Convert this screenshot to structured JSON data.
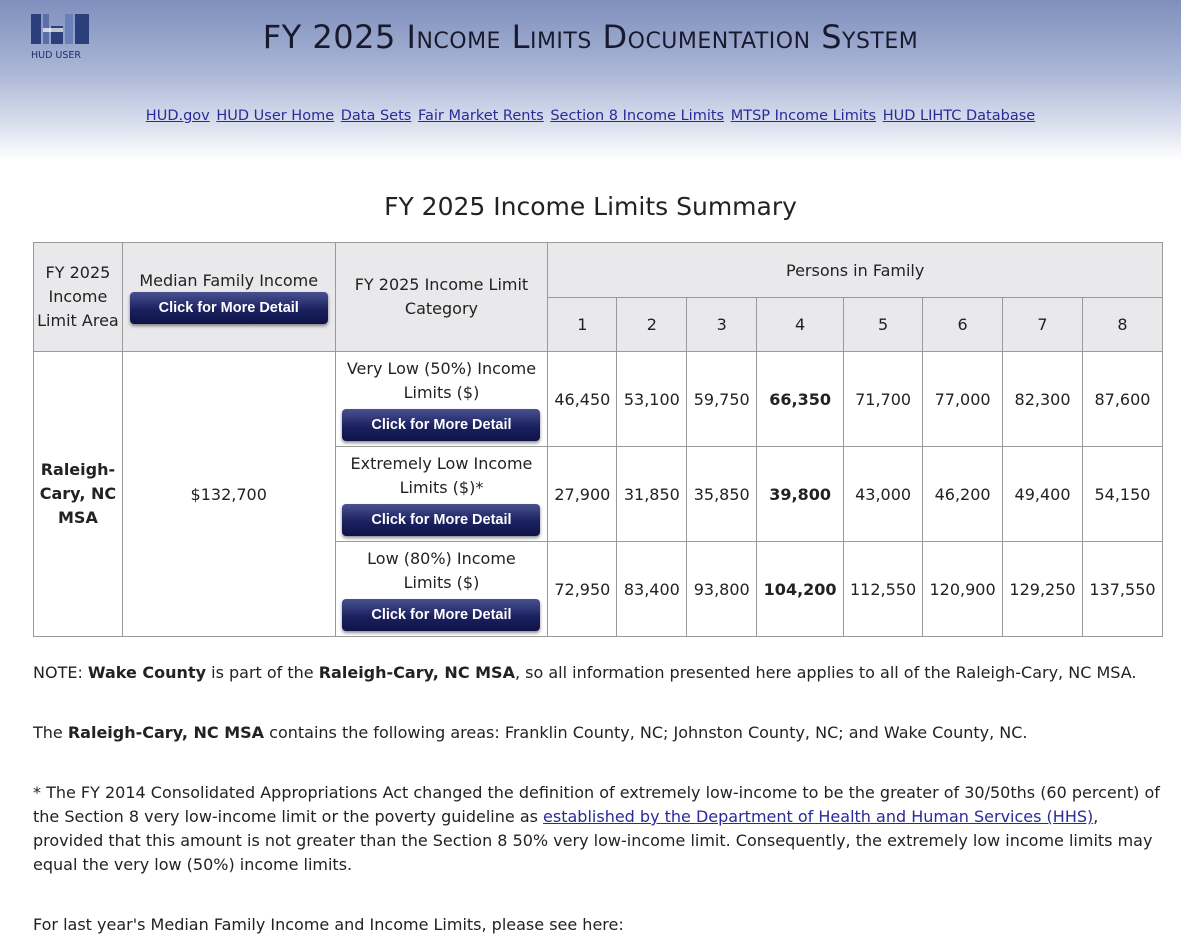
{
  "header": {
    "logo_text": "HUD USER",
    "title": "FY 2025 Income Limits Documentation System",
    "nav": [
      "HUD.gov",
      "HUD User Home",
      "Data Sets",
      "Fair Market Rents",
      "Section 8 Income Limits",
      "MTSP Income Limits",
      "HUD LIHTC Database"
    ]
  },
  "page_title": "FY 2025 Income Limits Summary",
  "table": {
    "col_area": "FY 2025 Income Limit Area",
    "col_mfi": "Median Family Income",
    "col_category": "FY 2025 Income Limit Category",
    "col_persons": "Persons in Family",
    "persons": [
      "1",
      "2",
      "3",
      "4",
      "5",
      "6",
      "7",
      "8"
    ],
    "detail_button": "Click for More Detail",
    "area": "Raleigh-Cary, NC MSA",
    "mfi": "$132,700",
    "rows": [
      {
        "category": "Very Low (50%) Income Limits ($)",
        "values": [
          "46,450",
          "53,100",
          "59,750",
          "66,350",
          "71,700",
          "77,000",
          "82,300",
          "87,600"
        ]
      },
      {
        "category": "Extremely Low Income Limits ($)*",
        "values": [
          "27,900",
          "31,850",
          "35,850",
          "39,800",
          "43,000",
          "46,200",
          "49,400",
          "54,150"
        ]
      },
      {
        "category": "Low (80%) Income Limits ($)",
        "values": [
          "72,950",
          "83,400",
          "93,800",
          "104,200",
          "112,550",
          "120,900",
          "129,250",
          "137,550"
        ]
      }
    ]
  },
  "note": {
    "prefix": "NOTE: ",
    "county": "Wake County",
    "mid": " is part of the ",
    "msa": "Raleigh-Cary, NC MSA",
    "suffix": ", so all information presented here applies to all of the Raleigh-Cary, NC MSA."
  },
  "contains": {
    "prefix": "The ",
    "msa": "Raleigh-Cary, NC MSA",
    "suffix": " contains the following areas: Franklin County, NC; Johnston County, NC; and Wake County, NC."
  },
  "footnote": {
    "text_before": "* The FY 2014 Consolidated Appropriations Act changed the definition of extremely low-income to be the greater of 30/50ths (60 percent) of the Section 8 very low-income limit or the poverty guideline as ",
    "link": "established by the Department of Health and Human Services (HHS)",
    "text_after": ", provided that this amount is not greater than the Section 8 50% very low-income limit. Consequently, the extremely low income limits may equal the very low (50%) income limits."
  },
  "last_year": "For last year's Median Family Income and Income Limits, please see here:",
  "colors": {
    "nav_link": "#2a2a9a",
    "button_dark": "#1b2160",
    "header_top": "#7f8fbd"
  }
}
